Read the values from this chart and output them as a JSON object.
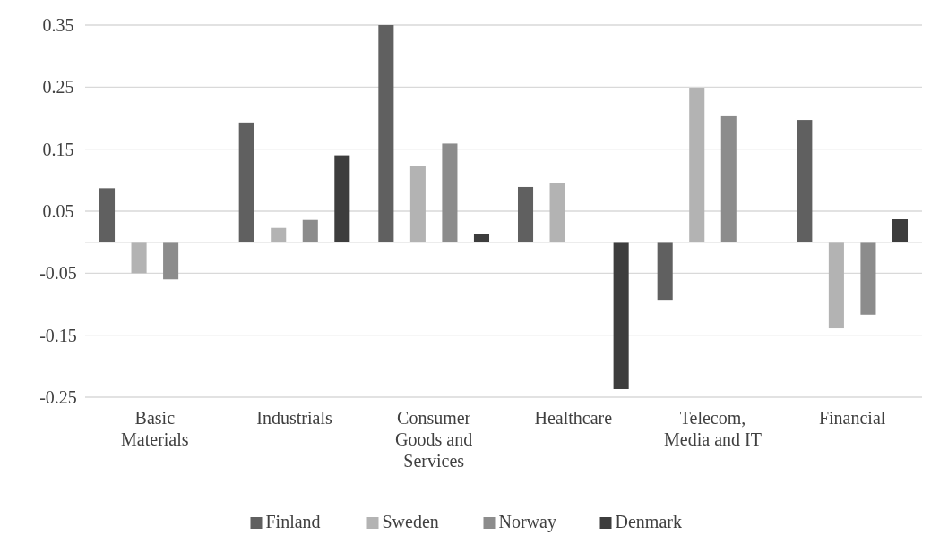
{
  "chart_data": {
    "type": "bar",
    "categories": [
      "Basic Materials",
      "Industrials",
      "Consumer Goods and Services",
      "Healthcare",
      "Telecom, Media and IT",
      "Financial"
    ],
    "series": [
      {
        "name": "Finland",
        "color": "#606060",
        "values": [
          0.087,
          0.193,
          0.35,
          0.089,
          -0.093,
          0.197
        ]
      },
      {
        "name": "Sweden",
        "color": "#b3b3b3",
        "values": [
          -0.05,
          0.023,
          0.123,
          0.096,
          0.249,
          -0.139
        ]
      },
      {
        "name": "Norway",
        "color": "#8c8c8c",
        "values": [
          -0.06,
          0.036,
          0.159,
          null,
          0.203,
          -0.117
        ]
      },
      {
        "name": "Denmark",
        "color": "#3d3d3d",
        "values": [
          null,
          0.14,
          0.013,
          -0.237,
          null,
          0.037
        ]
      }
    ],
    "ylim": [
      -0.25,
      0.35
    ],
    "yticks": [
      0.35,
      0.25,
      0.15,
      0.05,
      -0.05,
      -0.15,
      -0.25
    ],
    "grid": "y",
    "legend": "bottom"
  }
}
